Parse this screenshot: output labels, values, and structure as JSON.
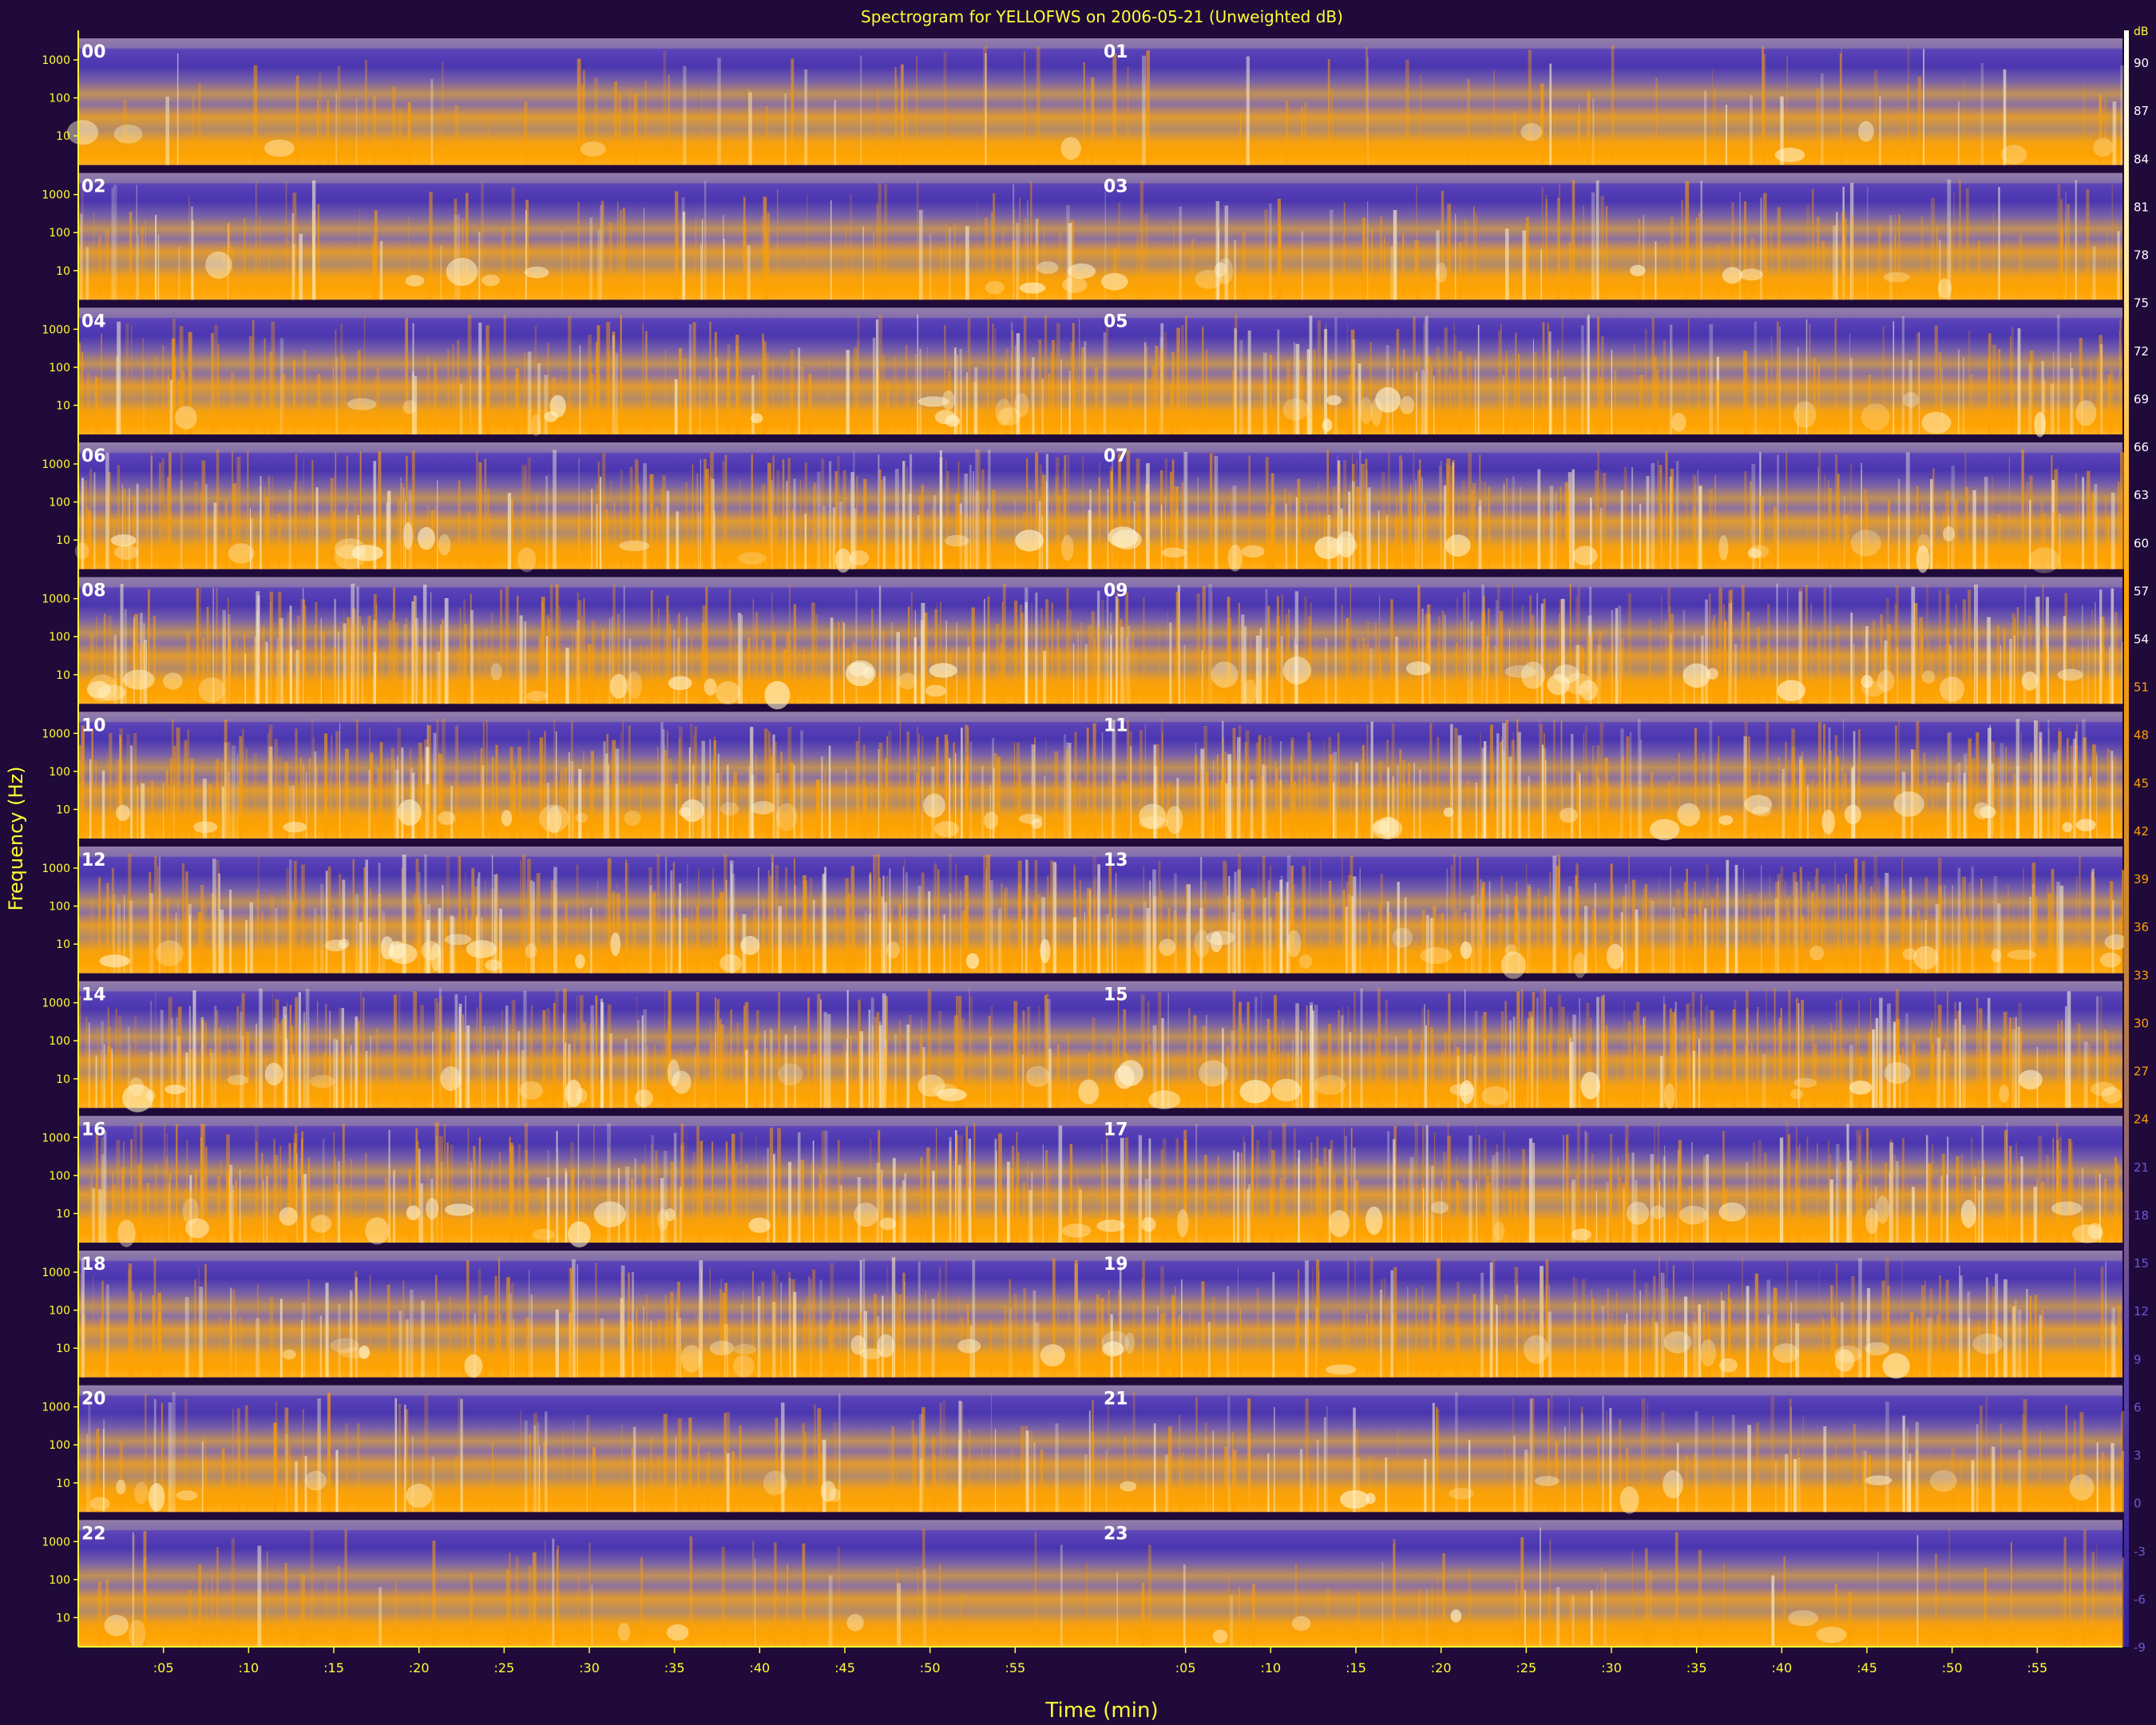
{
  "chart_data": {
    "type": "heatmap",
    "title": "Spectrogram for YELLOFWS on 2006-05-21 (Unweighted dB)",
    "xlabel": "Time (min)",
    "ylabel": "Frequency (Hz)",
    "x_tick_labels": [
      ":05",
      ":10",
      ":15",
      ":20",
      ":25",
      ":30",
      ":35",
      ":40",
      ":45",
      ":50",
      ":55"
    ],
    "y_tick_labels": [
      "1000",
      "100",
      "10"
    ],
    "hour_labels": [
      "00",
      "01",
      "02",
      "03",
      "04",
      "05",
      "06",
      "07",
      "08",
      "09",
      "10",
      "11",
      "12",
      "13",
      "14",
      "15",
      "16",
      "17",
      "18",
      "19",
      "20",
      "21",
      "22",
      "23"
    ],
    "colorbar": {
      "unit": "dB",
      "range": [
        -9,
        92
      ],
      "ticks": [
        90,
        87,
        84,
        81,
        78,
        75,
        72,
        69,
        66,
        63,
        60,
        57,
        54,
        51,
        48,
        45,
        42,
        39,
        36,
        33,
        30,
        27,
        24,
        21,
        18,
        15,
        12,
        9,
        6,
        3,
        0,
        -3,
        -6,
        -9
      ]
    },
    "colors": {
      "background": "#200a3a",
      "low": "#4a38b0",
      "mid": "#9a7aa0",
      "high": "#ffa000",
      "peak": "#fff4d0",
      "text": "#ffff33"
    }
  }
}
